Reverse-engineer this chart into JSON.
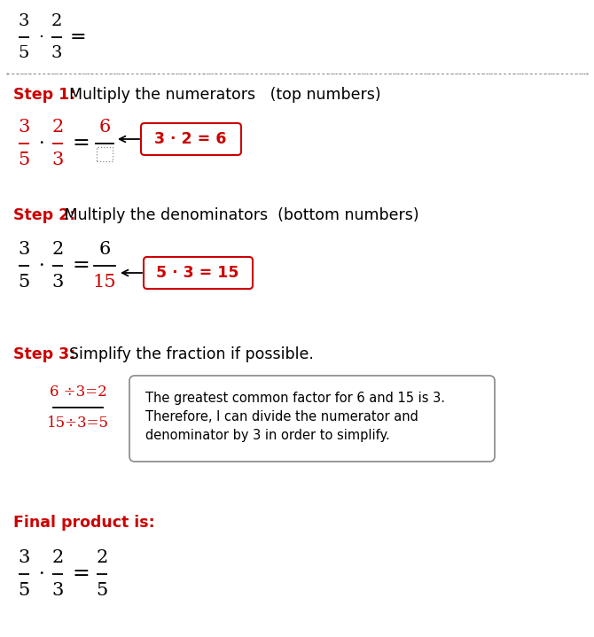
{
  "bg_color": "#ffffff",
  "red_color": "#cc0000",
  "black_color": "#000000",
  "step1_label": "Step 1:",
  "step1_text": "  Multiply the numerators   (top numbers)",
  "step2_label": "Step 2:",
  "step2_text": " Multiply the denominators  (bottom numbers)",
  "step3_label": "Step 3:",
  "step3_text": "  Simplify the fraction if possible.",
  "final_label": "Final product is:",
  "box1_text": "3 · 2 = 6",
  "box2_text": "5 · 3 = 15",
  "step3_numerator": "6 ÷3=2",
  "step3_denominator": "15÷3=5",
  "step3_box_text": "The greatest common factor for 6 and 15 is 3.\nTherefore, I can divide the numerator and\ndenominator by 3 in order to simplify."
}
